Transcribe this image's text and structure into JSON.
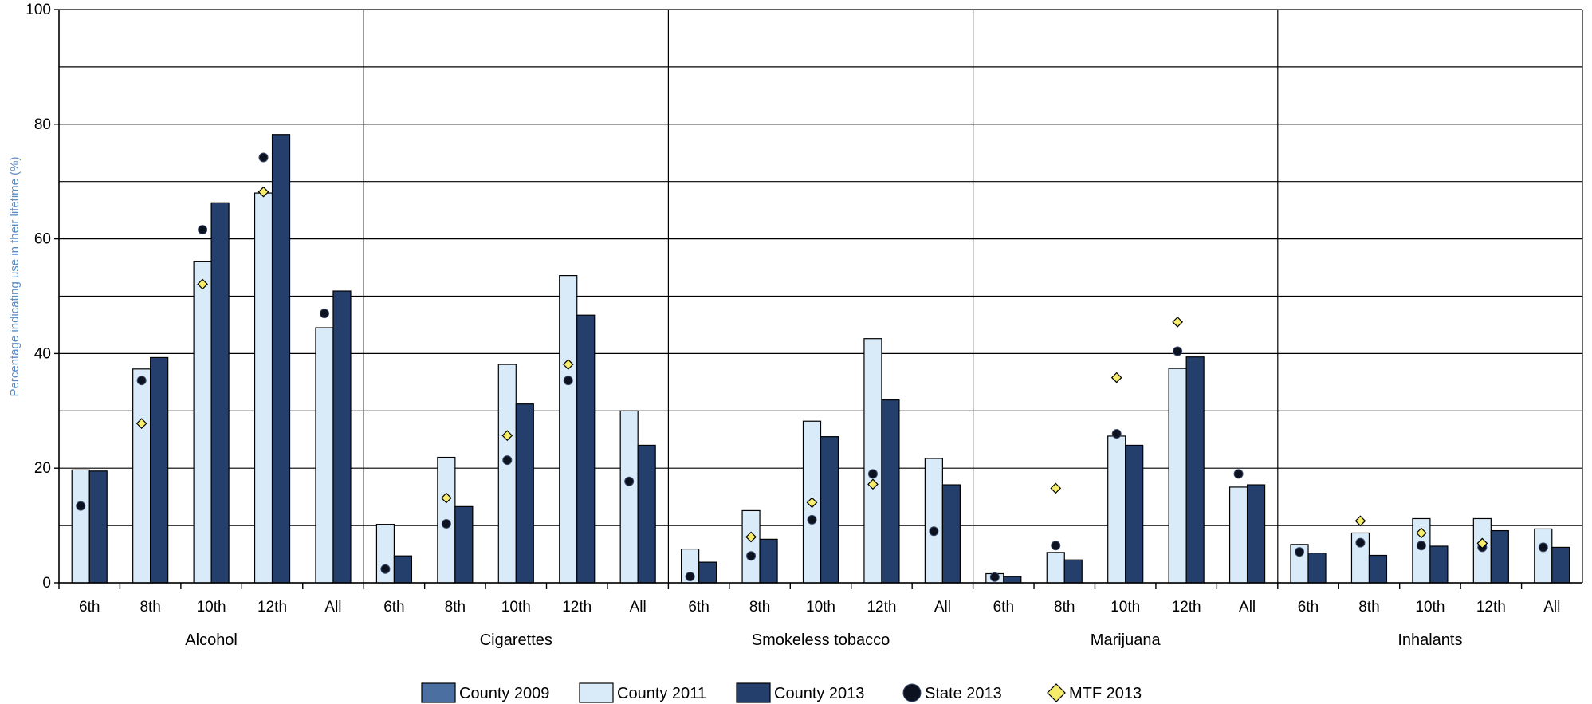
{
  "chart_data": {
    "type": "bar",
    "ylabel": "Percentage indicating use in their lifetime (%)",
    "ylim": [
      0,
      100
    ],
    "yticks": [
      0,
      20,
      40,
      60,
      80,
      100
    ],
    "grid": true,
    "legend_position": "bottom",
    "groups": [
      {
        "name": "Alcohol",
        "categories": [
          "6th",
          "8th",
          "10th",
          "12th",
          "All"
        ],
        "county_2009": [
          null,
          null,
          null,
          null,
          null
        ],
        "county_2011": [
          19.7,
          37.3,
          56.1,
          68.0,
          44.5
        ],
        "county_2013": [
          19.5,
          39.3,
          66.3,
          78.2,
          50.9
        ],
        "state_2013": [
          13.4,
          35.3,
          61.6,
          74.2,
          47.0
        ],
        "mtf_2013": [
          null,
          27.8,
          52.1,
          68.2,
          null
        ]
      },
      {
        "name": "Cigarettes",
        "categories": [
          "6th",
          "8th",
          "10th",
          "12th",
          "All"
        ],
        "county_2009": [
          null,
          null,
          null,
          null,
          null
        ],
        "county_2011": [
          10.2,
          21.9,
          38.1,
          53.6,
          30.0
        ],
        "county_2013": [
          4.7,
          13.3,
          31.2,
          46.7,
          24.0
        ],
        "state_2013": [
          2.4,
          10.3,
          21.4,
          35.3,
          17.7
        ],
        "mtf_2013": [
          null,
          14.8,
          25.7,
          38.1,
          null
        ]
      },
      {
        "name": "Smokeless tobacco",
        "categories": [
          "6th",
          "8th",
          "10th",
          "12th",
          "All"
        ],
        "county_2009": [
          null,
          null,
          null,
          null,
          null
        ],
        "county_2011": [
          5.9,
          12.6,
          28.2,
          42.6,
          21.7
        ],
        "county_2013": [
          3.6,
          7.6,
          25.5,
          31.9,
          17.1
        ],
        "state_2013": [
          1.1,
          4.7,
          11.0,
          19.0,
          9.0
        ],
        "mtf_2013": [
          null,
          8.0,
          14.0,
          17.2,
          null
        ]
      },
      {
        "name": "Marijuana",
        "categories": [
          "6th",
          "8th",
          "10th",
          "12th",
          "All"
        ],
        "county_2009": [
          null,
          null,
          null,
          null,
          null
        ],
        "county_2011": [
          1.6,
          5.3,
          25.6,
          37.4,
          16.7
        ],
        "county_2013": [
          1.1,
          4.0,
          24.0,
          39.4,
          17.1
        ],
        "state_2013": [
          1.0,
          6.5,
          26.0,
          40.4,
          19.0
        ],
        "mtf_2013": [
          null,
          16.5,
          35.8,
          45.5,
          null
        ]
      },
      {
        "name": "Inhalants",
        "categories": [
          "6th",
          "8th",
          "10th",
          "12th",
          "All"
        ],
        "county_2009": [
          null,
          null,
          null,
          null,
          null
        ],
        "county_2011": [
          6.7,
          8.7,
          11.2,
          11.2,
          9.4
        ],
        "county_2013": [
          5.2,
          4.8,
          6.4,
          9.1,
          6.2
        ],
        "state_2013": [
          5.4,
          7.0,
          6.5,
          6.2,
          6.2
        ],
        "mtf_2013": [
          null,
          10.8,
          8.7,
          6.9,
          null
        ]
      }
    ],
    "legend": [
      {
        "name": "County 2009",
        "symbol": "bar",
        "color": "#4a6fa0"
      },
      {
        "name": "County 2011",
        "symbol": "bar",
        "color": "#d9eaf8"
      },
      {
        "name": "County 2013",
        "symbol": "bar",
        "color": "#243f6b"
      },
      {
        "name": "State 2013",
        "symbol": "circle",
        "color": "#0d1220"
      },
      {
        "name": "MTF 2013",
        "symbol": "diamond",
        "color": "#f4ec6a"
      }
    ]
  }
}
